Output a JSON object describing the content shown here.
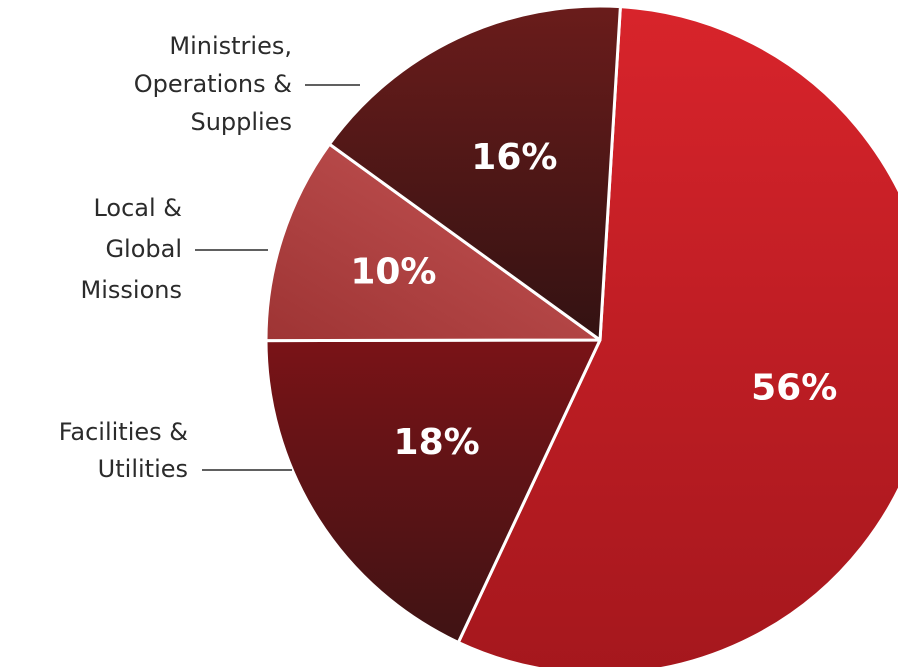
{
  "chart_data": {
    "type": "pie",
    "title": "",
    "slices": [
      {
        "label": "",
        "value": 56,
        "value_label": "56%",
        "color": "#c41e26"
      },
      {
        "label": "Facilities & Utilities",
        "label_lines": [
          "Facilities &",
          "Utilities"
        ],
        "value": 18,
        "value_label": "18%",
        "color": "#6e1216"
      },
      {
        "label": "Local & Global Missions",
        "label_lines": [
          "Local &",
          "Global",
          "Missions"
        ],
        "value": 10,
        "value_label": "10%",
        "color": "#b84848"
      },
      {
        "label": "Ministries, Operations & Supplies",
        "label_lines": [
          "Ministries,",
          "Operations &",
          "Supplies"
        ],
        "value": 16,
        "value_label": "16%",
        "color": "#4a1617"
      }
    ]
  }
}
